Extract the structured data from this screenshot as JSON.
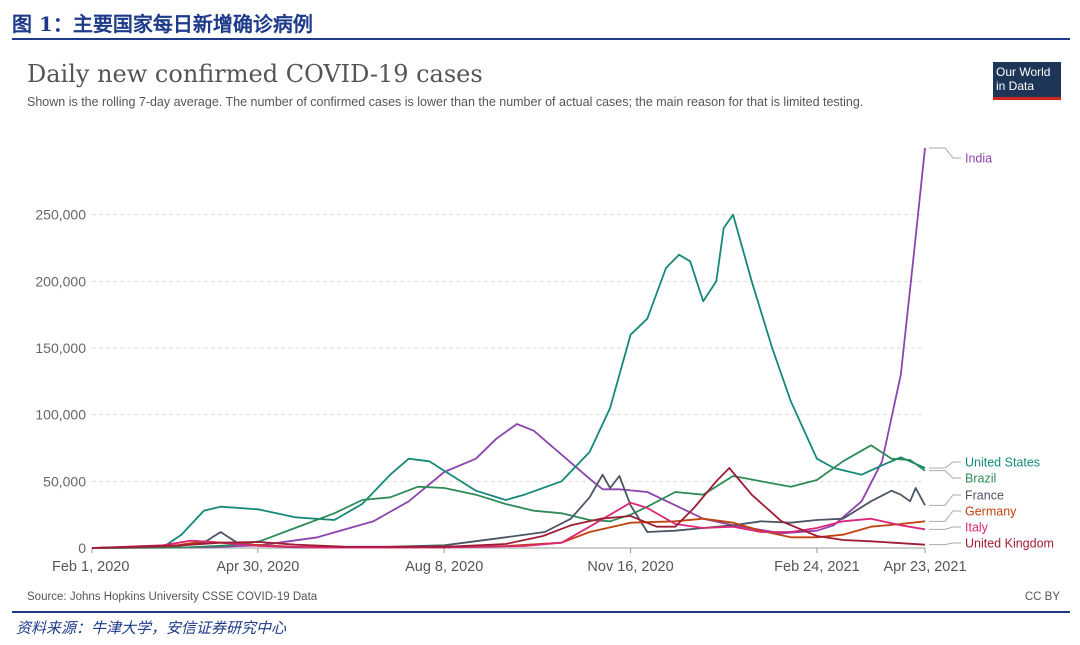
{
  "header": {
    "figure_label": "图 1：主要国家每日新增确诊病例",
    "footer_source": "资料来源：牛津大学，安信证券研究中心"
  },
  "logo": {
    "line1": "Our World",
    "line2": "in Data"
  },
  "license": "CC BY",
  "chart_data": {
    "type": "line",
    "title": "Daily new confirmed COVID-19 cases",
    "subtitle": "Shown is the rolling 7-day average. The number of confirmed cases is lower than the number of actual cases; the main reason for that is limited testing.",
    "source": "Source: Johns Hopkins University CSSE COVID-19 Data",
    "x_tick_labels": [
      "Feb 1, 2020",
      "Apr 30, 2020",
      "Aug 8, 2020",
      "Nov 16, 2020",
      "Feb 24, 2021",
      "Apr 23, 2021"
    ],
    "x_tick_dates": [
      "2020-02-01",
      "2020-04-30",
      "2020-08-08",
      "2020-11-16",
      "2021-02-24",
      "2021-04-23"
    ],
    "xlim": [
      "2020-02-01",
      "2021-04-23"
    ],
    "y_ticks": [
      0,
      50000,
      100000,
      150000,
      200000,
      250000
    ],
    "y_tick_labels": [
      "0",
      "50,000",
      "100,000",
      "150,000",
      "200,000",
      "250,000"
    ],
    "ylim": [
      0,
      300000
    ],
    "grid": "horizontal dashed",
    "legend": "right, line-end labels",
    "series": [
      {
        "name": "India",
        "color": "#8e44ad",
        "points": [
          [
            "2020-02-01",
            0
          ],
          [
            "2020-04-01",
            500
          ],
          [
            "2020-05-01",
            2000
          ],
          [
            "2020-06-01",
            8000
          ],
          [
            "2020-07-01",
            20000
          ],
          [
            "2020-07-20",
            35000
          ],
          [
            "2020-08-08",
            57000
          ],
          [
            "2020-08-25",
            67000
          ],
          [
            "2020-09-05",
            82000
          ],
          [
            "2020-09-16",
            93000
          ],
          [
            "2020-09-25",
            88000
          ],
          [
            "2020-10-10",
            70000
          ],
          [
            "2020-10-25",
            52000
          ],
          [
            "2020-11-01",
            44000
          ],
          [
            "2020-11-10",
            44000
          ],
          [
            "2020-11-25",
            42000
          ],
          [
            "2020-12-10",
            32000
          ],
          [
            "2020-12-25",
            22000
          ],
          [
            "2021-01-10",
            17000
          ],
          [
            "2021-02-05",
            11000
          ],
          [
            "2021-02-24",
            13000
          ],
          [
            "2021-03-05",
            17000
          ],
          [
            "2021-03-20",
            35000
          ],
          [
            "2021-03-31",
            65000
          ],
          [
            "2021-04-10",
            130000
          ],
          [
            "2021-04-17",
            220000
          ],
          [
            "2021-04-23",
            300000
          ]
        ]
      },
      {
        "name": "United States",
        "color": "#14897a",
        "points": [
          [
            "2020-02-01",
            0
          ],
          [
            "2020-03-10",
            500
          ],
          [
            "2020-03-20",
            10000
          ],
          [
            "2020-04-01",
            28000
          ],
          [
            "2020-04-10",
            31000
          ],
          [
            "2020-04-30",
            29000
          ],
          [
            "2020-05-20",
            23000
          ],
          [
            "2020-06-10",
            21000
          ],
          [
            "2020-06-25",
            33000
          ],
          [
            "2020-07-10",
            55000
          ],
          [
            "2020-07-20",
            67000
          ],
          [
            "2020-07-31",
            65000
          ],
          [
            "2020-08-08",
            58000
          ],
          [
            "2020-08-25",
            43000
          ],
          [
            "2020-09-10",
            36000
          ],
          [
            "2020-09-20",
            40000
          ],
          [
            "2020-10-10",
            50000
          ],
          [
            "2020-10-25",
            72000
          ],
          [
            "2020-11-05",
            105000
          ],
          [
            "2020-11-16",
            160000
          ],
          [
            "2020-11-25",
            172000
          ],
          [
            "2020-12-05",
            210000
          ],
          [
            "2020-12-12",
            220000
          ],
          [
            "2020-12-18",
            215000
          ],
          [
            "2020-12-25",
            185000
          ],
          [
            "2021-01-01",
            200000
          ],
          [
            "2021-01-05",
            240000
          ],
          [
            "2021-01-10",
            250000
          ],
          [
            "2021-01-20",
            200000
          ],
          [
            "2021-01-31",
            150000
          ],
          [
            "2021-02-10",
            110000
          ],
          [
            "2021-02-24",
            67000
          ],
          [
            "2021-03-05",
            60000
          ],
          [
            "2021-03-20",
            55000
          ],
          [
            "2021-03-31",
            62000
          ],
          [
            "2021-04-10",
            68000
          ],
          [
            "2021-04-23",
            60000
          ]
        ]
      },
      {
        "name": "Brazil",
        "color": "#2e8b57",
        "points": [
          [
            "2020-02-01",
            0
          ],
          [
            "2020-03-20",
            300
          ],
          [
            "2020-04-15",
            2000
          ],
          [
            "2020-05-01",
            5000
          ],
          [
            "2020-05-20",
            15000
          ],
          [
            "2020-06-10",
            26000
          ],
          [
            "2020-06-25",
            36000
          ],
          [
            "2020-07-10",
            38000
          ],
          [
            "2020-07-25",
            46000
          ],
          [
            "2020-08-08",
            45000
          ],
          [
            "2020-08-25",
            40000
          ],
          [
            "2020-09-10",
            33000
          ],
          [
            "2020-09-25",
            28000
          ],
          [
            "2020-10-10",
            26000
          ],
          [
            "2020-10-25",
            21000
          ],
          [
            "2020-11-05",
            20000
          ],
          [
            "2020-11-16",
            25000
          ],
          [
            "2020-11-25",
            31000
          ],
          [
            "2020-12-10",
            42000
          ],
          [
            "2020-12-25",
            40000
          ],
          [
            "2021-01-10",
            54000
          ],
          [
            "2021-01-25",
            50000
          ],
          [
            "2021-02-10",
            46000
          ],
          [
            "2021-02-24",
            51000
          ],
          [
            "2021-03-10",
            65000
          ],
          [
            "2021-03-25",
            77000
          ],
          [
            "2021-04-05",
            67000
          ],
          [
            "2021-04-15",
            66000
          ],
          [
            "2021-04-23",
            58000
          ]
        ]
      },
      {
        "name": "France",
        "color": "#4b5563",
        "points": [
          [
            "2020-02-01",
            0
          ],
          [
            "2020-03-10",
            500
          ],
          [
            "2020-04-01",
            4000
          ],
          [
            "2020-04-10",
            12000
          ],
          [
            "2020-04-20",
            3000
          ],
          [
            "2020-05-20",
            500
          ],
          [
            "2020-07-01",
            500
          ],
          [
            "2020-08-08",
            2000
          ],
          [
            "2020-09-10",
            8000
          ],
          [
            "2020-10-01",
            12000
          ],
          [
            "2020-10-15",
            22000
          ],
          [
            "2020-10-25",
            38000
          ],
          [
            "2020-11-01",
            55000
          ],
          [
            "2020-11-05",
            45000
          ],
          [
            "2020-11-10",
            54000
          ],
          [
            "2020-11-16",
            32000
          ],
          [
            "2020-11-25",
            12000
          ],
          [
            "2020-12-10",
            13000
          ],
          [
            "2020-12-25",
            15000
          ],
          [
            "2021-01-10",
            17000
          ],
          [
            "2021-01-25",
            20000
          ],
          [
            "2021-02-10",
            19000
          ],
          [
            "2021-02-24",
            21000
          ],
          [
            "2021-03-10",
            22000
          ],
          [
            "2021-03-25",
            35000
          ],
          [
            "2021-04-05",
            43000
          ],
          [
            "2021-04-10",
            40000
          ],
          [
            "2021-04-15",
            35000
          ],
          [
            "2021-04-18",
            45000
          ],
          [
            "2021-04-23",
            32000
          ]
        ]
      },
      {
        "name": "Germany",
        "color": "#c2410c",
        "points": [
          [
            "2020-02-01",
            0
          ],
          [
            "2020-03-15",
            1500
          ],
          [
            "2020-04-01",
            5000
          ],
          [
            "2020-04-20",
            3000
          ],
          [
            "2020-05-20",
            800
          ],
          [
            "2020-07-01",
            400
          ],
          [
            "2020-08-08",
            1000
          ],
          [
            "2020-09-10",
            1500
          ],
          [
            "2020-10-10",
            4000
          ],
          [
            "2020-10-25",
            12000
          ],
          [
            "2020-11-16",
            19000
          ],
          [
            "2020-12-10",
            20000
          ],
          [
            "2020-12-25",
            22000
          ],
          [
            "2021-01-10",
            19000
          ],
          [
            "2021-01-25",
            13000
          ],
          [
            "2021-02-10",
            8000
          ],
          [
            "2021-02-24",
            8000
          ],
          [
            "2021-03-10",
            10000
          ],
          [
            "2021-03-25",
            16000
          ],
          [
            "2021-04-10",
            18000
          ],
          [
            "2021-04-23",
            20000
          ]
        ]
      },
      {
        "name": "Italy",
        "color": "#db2777",
        "points": [
          [
            "2020-02-01",
            0
          ],
          [
            "2020-03-10",
            2000
          ],
          [
            "2020-03-25",
            5500
          ],
          [
            "2020-04-10",
            4000
          ],
          [
            "2020-05-01",
            1500
          ],
          [
            "2020-06-01",
            300
          ],
          [
            "2020-08-08",
            400
          ],
          [
            "2020-09-20",
            1500
          ],
          [
            "2020-10-10",
            4000
          ],
          [
            "2020-10-25",
            16000
          ],
          [
            "2020-11-16",
            34000
          ],
          [
            "2020-11-25",
            30000
          ],
          [
            "2020-12-10",
            18000
          ],
          [
            "2020-12-25",
            15000
          ],
          [
            "2021-01-10",
            16000
          ],
          [
            "2021-01-25",
            12000
          ],
          [
            "2021-02-10",
            12000
          ],
          [
            "2021-02-24",
            15000
          ],
          [
            "2021-03-10",
            20000
          ],
          [
            "2021-03-25",
            22000
          ],
          [
            "2021-04-10",
            17000
          ],
          [
            "2021-04-23",
            14000
          ]
        ]
      },
      {
        "name": "United Kingdom",
        "color": "#9f1d35",
        "points": [
          [
            "2020-02-01",
            0
          ],
          [
            "2020-03-20",
            2000
          ],
          [
            "2020-04-10",
            4000
          ],
          [
            "2020-05-01",
            4500
          ],
          [
            "2020-05-20",
            2500
          ],
          [
            "2020-06-15",
            1000
          ],
          [
            "2020-08-08",
            800
          ],
          [
            "2020-09-10",
            3000
          ],
          [
            "2020-09-30",
            9000
          ],
          [
            "2020-10-15",
            17000
          ],
          [
            "2020-10-31",
            22000
          ],
          [
            "2020-11-16",
            24000
          ],
          [
            "2020-11-30",
            16000
          ],
          [
            "2020-12-10",
            16000
          ],
          [
            "2020-12-20",
            30000
          ],
          [
            "2021-01-01",
            50000
          ],
          [
            "2021-01-08",
            60000
          ],
          [
            "2021-01-20",
            40000
          ],
          [
            "2021-02-05",
            20000
          ],
          [
            "2021-02-24",
            9000
          ],
          [
            "2021-03-10",
            6000
          ],
          [
            "2021-03-25",
            5000
          ],
          [
            "2021-04-23",
            2500
          ]
        ]
      }
    ]
  }
}
